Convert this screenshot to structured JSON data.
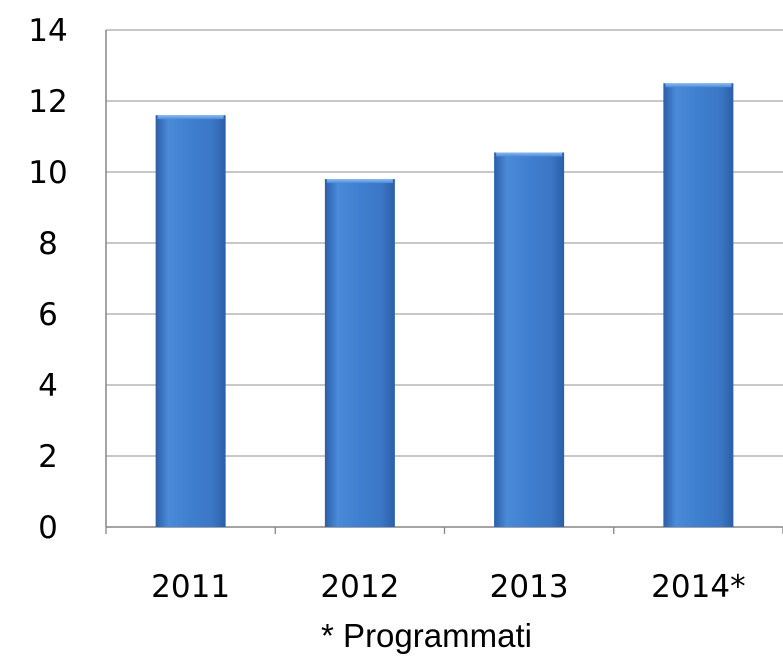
{
  "chart_data": {
    "type": "bar",
    "categories": [
      "2011",
      "2012",
      "2013",
      "2014*"
    ],
    "values": [
      11.6,
      9.8,
      10.55,
      12.5
    ],
    "ylim": [
      0,
      14
    ],
    "yticks": [
      0,
      2,
      4,
      6,
      8,
      10,
      12,
      14
    ],
    "grid": true,
    "legend": "none",
    "title": "",
    "xlabel": "",
    "ylabel": "",
    "colors": {
      "bar": "#3f7fd0",
      "bar_dark": "#2b5ea8",
      "bar_light": "#6fa6e6",
      "grid": "#a6a6a6",
      "axis": "#868686"
    }
  },
  "footnote": "* Programmati"
}
